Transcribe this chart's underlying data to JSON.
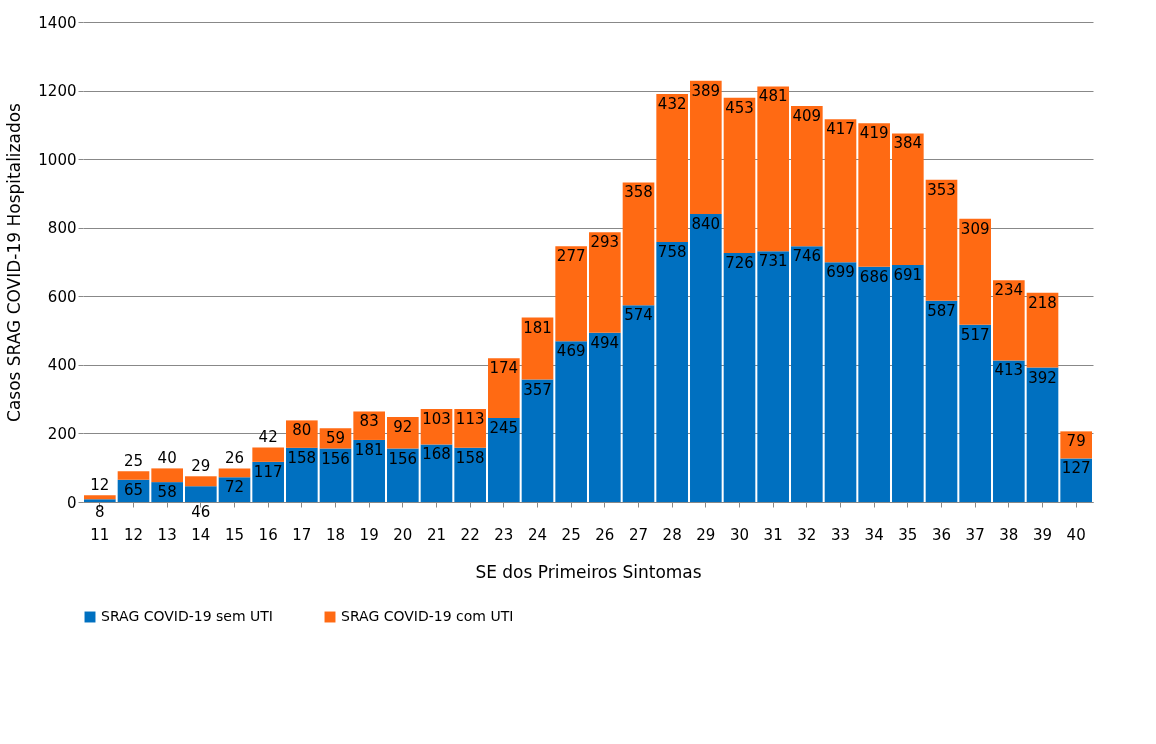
{
  "chart_data": {
    "type": "bar",
    "stacked": true,
    "xlabel": "SE dos Primeiros Sintomas",
    "ylabel": "Casos SRAG COVID-19 Hospitalizados",
    "categories": [
      "11",
      "12",
      "13",
      "14",
      "15",
      "16",
      "17",
      "18",
      "19",
      "20",
      "21",
      "22",
      "23",
      "24",
      "25",
      "26",
      "27",
      "28",
      "29",
      "30",
      "31",
      "32",
      "33",
      "34",
      "35",
      "36",
      "37",
      "38",
      "39",
      "40"
    ],
    "series": [
      {
        "name": "SRAG COVID-19 sem UTI",
        "color": "#0070c0",
        "values": [
          8,
          65,
          58,
          46,
          72,
          117,
          158,
          156,
          181,
          156,
          168,
          158,
          245,
          357,
          469,
          494,
          574,
          758,
          840,
          726,
          731,
          746,
          699,
          686,
          691,
          587,
          517,
          413,
          392,
          127
        ]
      },
      {
        "name": "SRAG COVID-19 com UTI",
        "color": "#ff6a13",
        "values": [
          12,
          25,
          40,
          29,
          26,
          42,
          80,
          59,
          83,
          92,
          103,
          113,
          174,
          181,
          277,
          293,
          358,
          432,
          389,
          453,
          481,
          409,
          417,
          419,
          384,
          353,
          309,
          234,
          218,
          79
        ]
      }
    ],
    "ylim": [
      0,
      1400
    ],
    "yticks": [
      0,
      200,
      400,
      600,
      800,
      1000,
      1200,
      1400
    ],
    "grid": "y",
    "legend": "bottom",
    "data_labels": true
  }
}
